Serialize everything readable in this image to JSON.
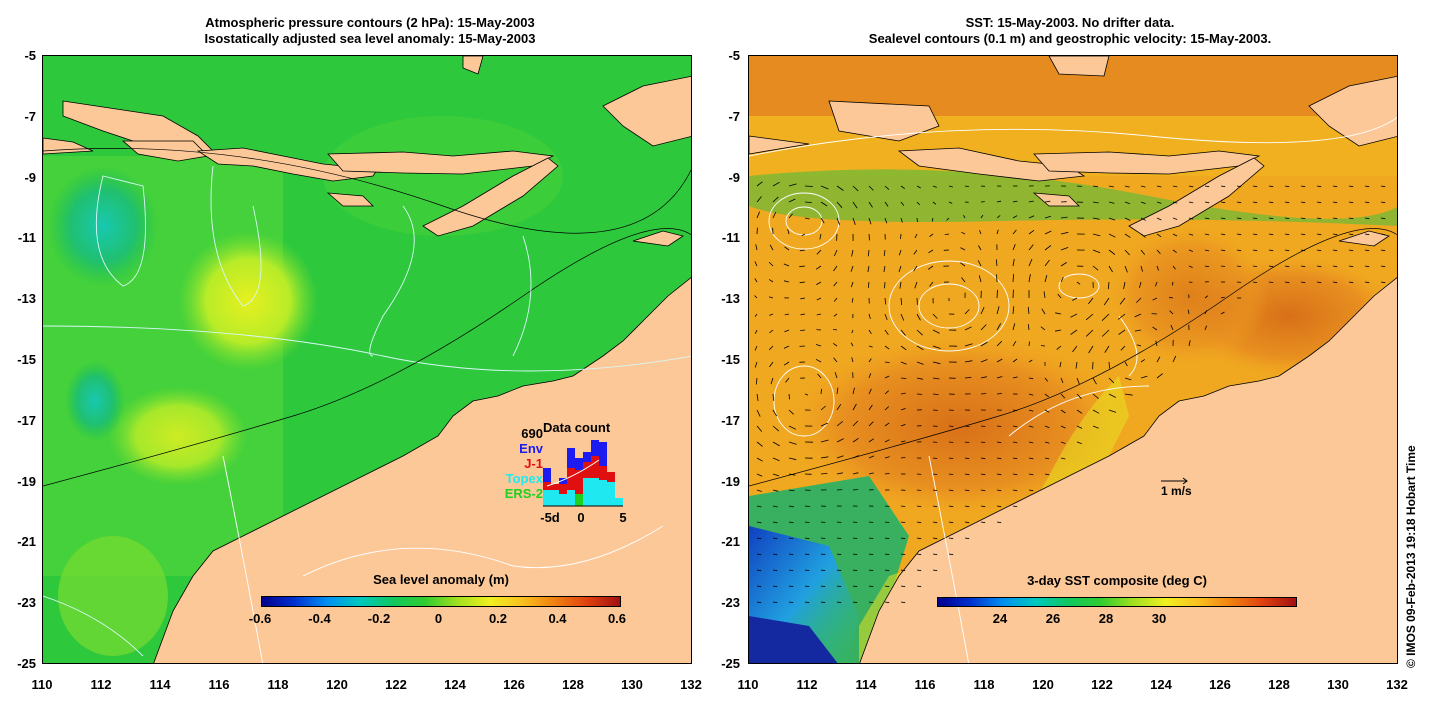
{
  "left_panel": {
    "title_line1": "Atmospheric pressure contours (2 hPa): 15-May-2003",
    "title_line2": "Isostatically adjusted sea level anomaly: 15-May-2003",
    "y_ticks": [
      "-5",
      "-7",
      "-9",
      "-11",
      "-13",
      "-15",
      "-17",
      "-19",
      "-21",
      "-23",
      "-25"
    ],
    "x_ticks": [
      "110",
      "112",
      "114",
      "116",
      "118",
      "120",
      "122",
      "124",
      "126",
      "128",
      "130",
      "132"
    ],
    "colorbar": {
      "title": "Sea level anomaly (m)",
      "ticks": [
        "-0.6",
        "-0.4",
        "-0.2",
        "0",
        "0.2",
        "0.4",
        "0.6"
      ]
    },
    "data_count": {
      "title": "Data count",
      "total": "690",
      "legend": [
        {
          "label": "Env",
          "color": "#1c1cf0"
        },
        {
          "label": "J-1",
          "color": "#e01010"
        },
        {
          "label": "Topex",
          "color": "#20e8f0"
        },
        {
          "label": "ERS-2",
          "color": "#20d020"
        }
      ],
      "x_ticks": [
        "-5d",
        "0",
        "5"
      ]
    }
  },
  "right_panel": {
    "title_line1": "SST: 15-May-2003. No drifter data.",
    "title_line2": "Sealevel contours (0.1 m) and geostrophic velocity: 15-May-2003.",
    "y_ticks": [
      "-5",
      "-7",
      "-9",
      "-11",
      "-13",
      "-15",
      "-17",
      "-19",
      "-21",
      "-23",
      "-25"
    ],
    "x_ticks": [
      "110",
      "112",
      "114",
      "116",
      "118",
      "120",
      "122",
      "124",
      "126",
      "128",
      "130",
      "132"
    ],
    "scale_label": "1 m/s",
    "colorbar": {
      "title": "3-day SST composite (deg C)",
      "ticks": [
        "24",
        "26",
        "28",
        "30"
      ]
    }
  },
  "credit": "© IMOS 09-Feb-2013 19:18 Hobart Time",
  "colors": {
    "land": "#fcc898",
    "ocean_green": "#2ec83c",
    "sst_orange": "#f0a020"
  }
}
